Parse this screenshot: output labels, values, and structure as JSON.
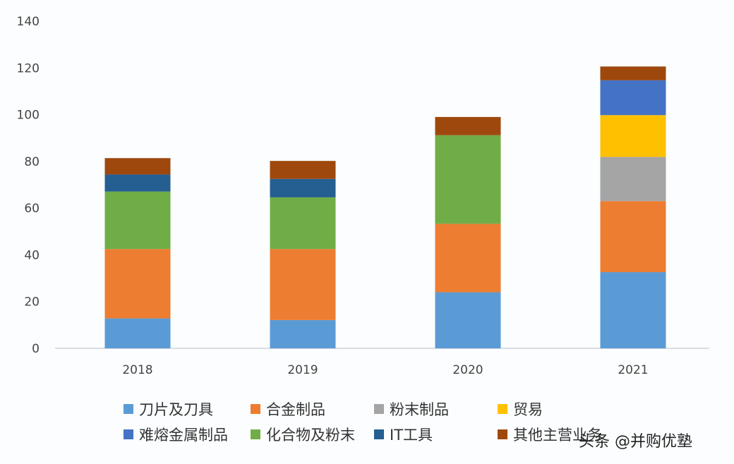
{
  "chart_data": {
    "type": "bar",
    "stacked": true,
    "categories": [
      "2018",
      "2019",
      "2020",
      "2021"
    ],
    "ylim": [
      0,
      140
    ],
    "yticks": [
      0,
      20,
      40,
      60,
      80,
      100,
      120,
      140
    ],
    "grid": false,
    "legend_position": "bottom",
    "series": [
      {
        "name": "刀片及刀具",
        "color": "#5b9bd5",
        "values": [
          12.8,
          12.1,
          24.0,
          32.6
        ]
      },
      {
        "name": "合金制品",
        "color": "#ed7d31",
        "values": [
          29.7,
          30.4,
          29.3,
          30.4
        ]
      },
      {
        "name": "粉末制品",
        "color": "#a5a5a5",
        "values": [
          0,
          0,
          0,
          18.9
        ]
      },
      {
        "name": "贸易",
        "color": "#ffc000",
        "values": [
          0,
          0,
          0,
          17.9
        ]
      },
      {
        "name": "难熔金属制品",
        "color": "#4472c4",
        "values": [
          0,
          0,
          0,
          14.9
        ]
      },
      {
        "name": "化合物及粉末",
        "color": "#70ad47",
        "values": [
          24.6,
          22.1,
          37.9,
          0
        ]
      },
      {
        "name": "IT工具",
        "color": "#255e91",
        "values": [
          7.3,
          7.9,
          0,
          0
        ]
      },
      {
        "name": "其他主营业务",
        "color": "#9e480e",
        "values": [
          7.0,
          7.7,
          7.8,
          5.9
        ]
      }
    ]
  },
  "watermark": "头条 @并购优塾"
}
